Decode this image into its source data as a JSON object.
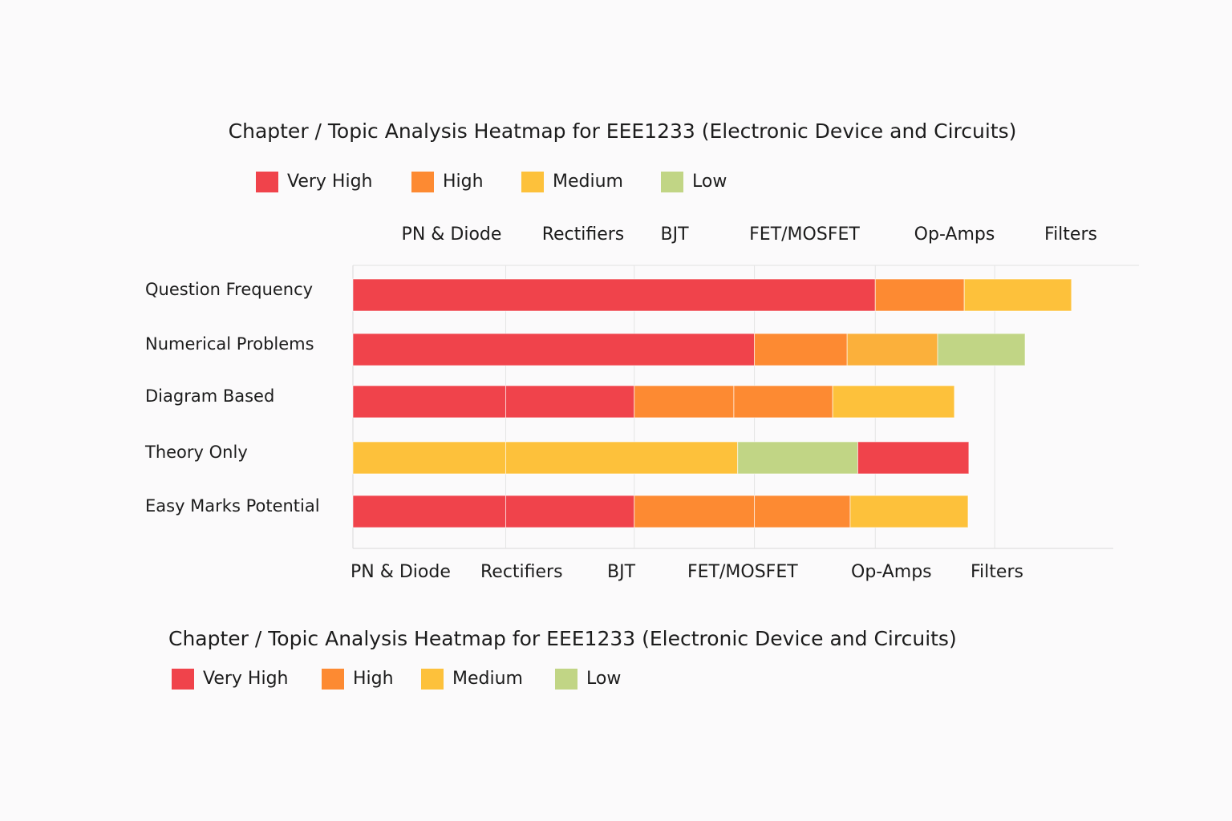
{
  "chart_data": {
    "type": "stacked_bar",
    "title": "Chapter / Topic Analysis Heatmap for EEE1233 (Electronic Device and Circuits)",
    "legend": [
      {
        "name": "Very High",
        "color": "#f0434b"
      },
      {
        "name": "High",
        "color": "#fd8a32"
      },
      {
        "name": "Medium",
        "color": "#fdc13b"
      },
      {
        "name": "Low",
        "color": "#c1d585"
      }
    ],
    "categories": [
      "Question Frequency",
      "Numerical Problems",
      "Diagram Based",
      "Theory Only",
      "Easy Marks Potential"
    ],
    "rows": [
      {
        "values": [
          68.7,
          11.7,
          14.1
        ],
        "colors": [
          "#f0434b",
          "#fd8a32",
          "#fdc13b"
        ]
      },
      {
        "values": [
          52.8,
          12.2,
          11.9,
          11.5
        ],
        "colors": [
          "#f0434b",
          "#fd8a32",
          "#fbb03b",
          "#c1d585"
        ]
      },
      {
        "values": [
          20.1,
          16.9,
          13.1,
          13.0,
          16.0
        ],
        "colors": [
          "#f0434b",
          "#f0434b",
          "#fd8a32",
          "#fd8a32",
          "#fdc13b"
        ]
      },
      {
        "values": [
          20.1,
          30.5,
          15.8,
          14.6
        ],
        "colors": [
          "#fdc13b",
          "#fdc13b",
          "#c1d585",
          "#f0434b"
        ]
      },
      {
        "values": [
          20.1,
          16.9,
          15.8,
          12.6,
          15.5
        ],
        "colors": [
          "#f0434b",
          "#f0434b",
          "#fd8a32",
          "#fd8a32",
          "#fdc13b"
        ]
      }
    ],
    "xlim": [
      0,
      100
    ],
    "xticks": [
      {
        "value": 0,
        "label": "PN & Diode"
      },
      {
        "value": 20.1,
        "label": "Rectifiers"
      },
      {
        "value": 37,
        "label": "BJT"
      },
      {
        "value": 52.8,
        "label": "FET/MOSFET"
      },
      {
        "value": 68.7,
        "label": "Op-Amps"
      },
      {
        "value": 84.4,
        "label": "Filters"
      }
    ],
    "grid": true
  }
}
